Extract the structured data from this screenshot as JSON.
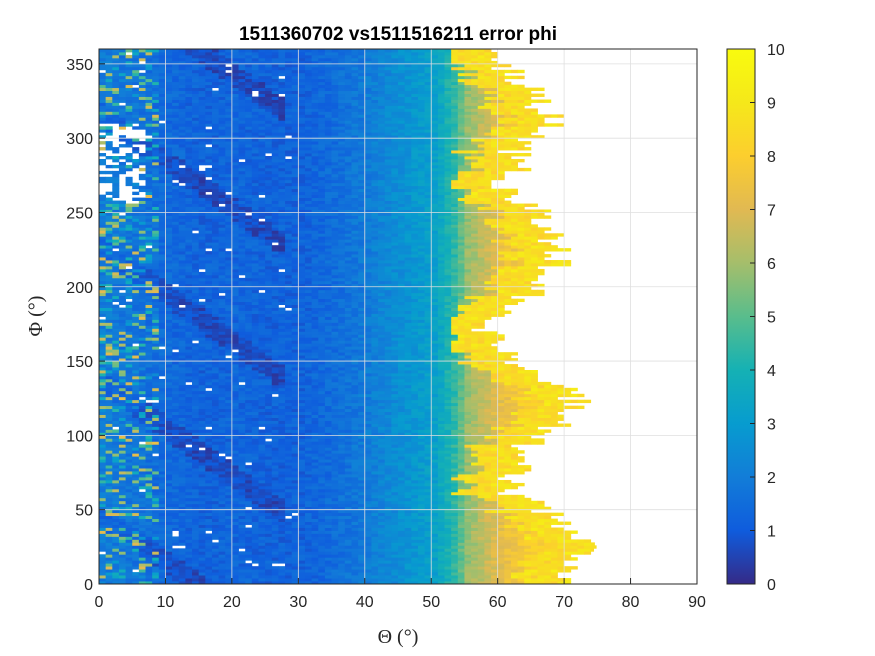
{
  "chart_data": {
    "type": "heatmap",
    "title": "1511360702 vs1511516211 error phi",
    "xlabel": "Θ (°)",
    "ylabel": "Φ (°)",
    "xlim": [
      0,
      90
    ],
    "ylim": [
      0,
      360
    ],
    "xticks": [
      "0",
      "10",
      "20",
      "30",
      "40",
      "50",
      "60",
      "70",
      "80",
      "90"
    ],
    "yticks": [
      "0",
      "50",
      "100",
      "150",
      "200",
      "250",
      "300",
      "350"
    ],
    "grid": true,
    "colormap": "parula",
    "colorbar": {
      "limits": [
        0,
        10
      ],
      "ticks": [
        "0",
        "1",
        "2",
        "3",
        "4",
        "5",
        "6",
        "7",
        "8",
        "9",
        "10"
      ]
    },
    "grid_resolution": {
      "theta_step": 1,
      "phi_step": 2
    },
    "notes_visible": "white regions are missing data (NaN)",
    "profile": {
      "edge_theta_by_phi": {
        "phi": [
          0,
          20,
          30,
          40,
          50,
          60,
          70,
          80,
          90,
          100,
          110,
          120,
          130,
          140,
          150,
          160,
          170,
          180,
          190,
          200,
          210,
          220,
          230,
          240,
          250,
          260,
          270,
          280,
          290,
          300,
          310,
          320,
          330,
          340,
          350,
          360
        ],
        "theta": [
          70,
          72,
          73,
          69,
          66,
          62,
          60,
          64,
          63,
          66,
          70,
          72,
          70,
          65,
          62,
          60,
          58,
          60,
          63,
          66,
          68,
          69,
          68,
          67,
          66,
          62,
          58,
          64,
          62,
          66,
          68,
          66,
          65,
          63,
          60,
          58
        ]
      },
      "base_value_by_theta": {
        "theta": [
          0,
          10,
          15,
          20,
          25,
          30,
          35,
          40,
          45,
          50,
          53,
          55,
          60,
          65,
          70,
          75
        ],
        "value": [
          2.0,
          1.4,
          1.2,
          1.3,
          1.2,
          1.2,
          1.5,
          2.0,
          2.6,
          3.2,
          4.4,
          5.8,
          7.2,
          8.0,
          8.3,
          8.5
        ]
      }
    }
  }
}
